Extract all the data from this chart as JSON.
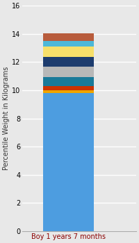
{
  "category": "Boy 1 years 7 months",
  "ylabel": "Percentile Weight in Kilograms",
  "ylim": [
    0,
    16
  ],
  "yticks": [
    0,
    2,
    4,
    6,
    8,
    10,
    12,
    14,
    16
  ],
  "background_color": "#e8e8e8",
  "bar_width": 0.6,
  "segments": [
    {
      "value": 9.8,
      "color": "#4d9de0"
    },
    {
      "value": 0.2,
      "color": "#f0a500"
    },
    {
      "value": 0.3,
      "color": "#cc3300"
    },
    {
      "value": 0.65,
      "color": "#1a7a99"
    },
    {
      "value": 0.7,
      "color": "#b8b8b8"
    },
    {
      "value": 0.7,
      "color": "#1d3c6e"
    },
    {
      "value": 0.75,
      "color": "#f7df6a"
    },
    {
      "value": 0.4,
      "color": "#4db8d8"
    },
    {
      "value": 0.55,
      "color": "#b85c3c"
    }
  ],
  "ylabel_fontsize": 7,
  "tick_fontsize": 7,
  "xlabel_color": "#8B0000",
  "grid_color": "#ffffff",
  "spine_color": "#aaaaaa"
}
